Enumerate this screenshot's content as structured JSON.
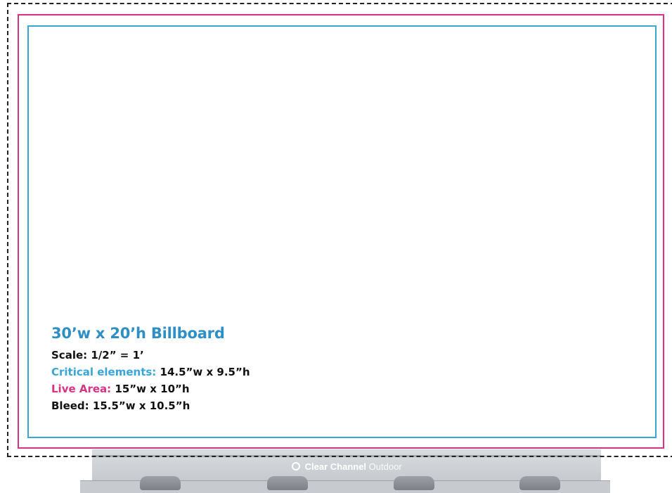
{
  "spec": {
    "title": "30’w x 20’h Billboard",
    "scale": "Scale: 1/2” = 1’",
    "critical_label": "Critical elements:",
    "critical_value": "14.5”w x 9.5”h",
    "live_label": "Live Area:",
    "live_value": "15”w x 10”h",
    "bleed": "Bleed: 15.5”w x 10.5”h"
  },
  "brand": {
    "strong": "Clear Channel",
    "light": "Outdoor"
  },
  "colors": {
    "critical": "#3aa6d8",
    "live": "#d63384",
    "bleed": "#222222",
    "title": "#2e8fc4"
  }
}
